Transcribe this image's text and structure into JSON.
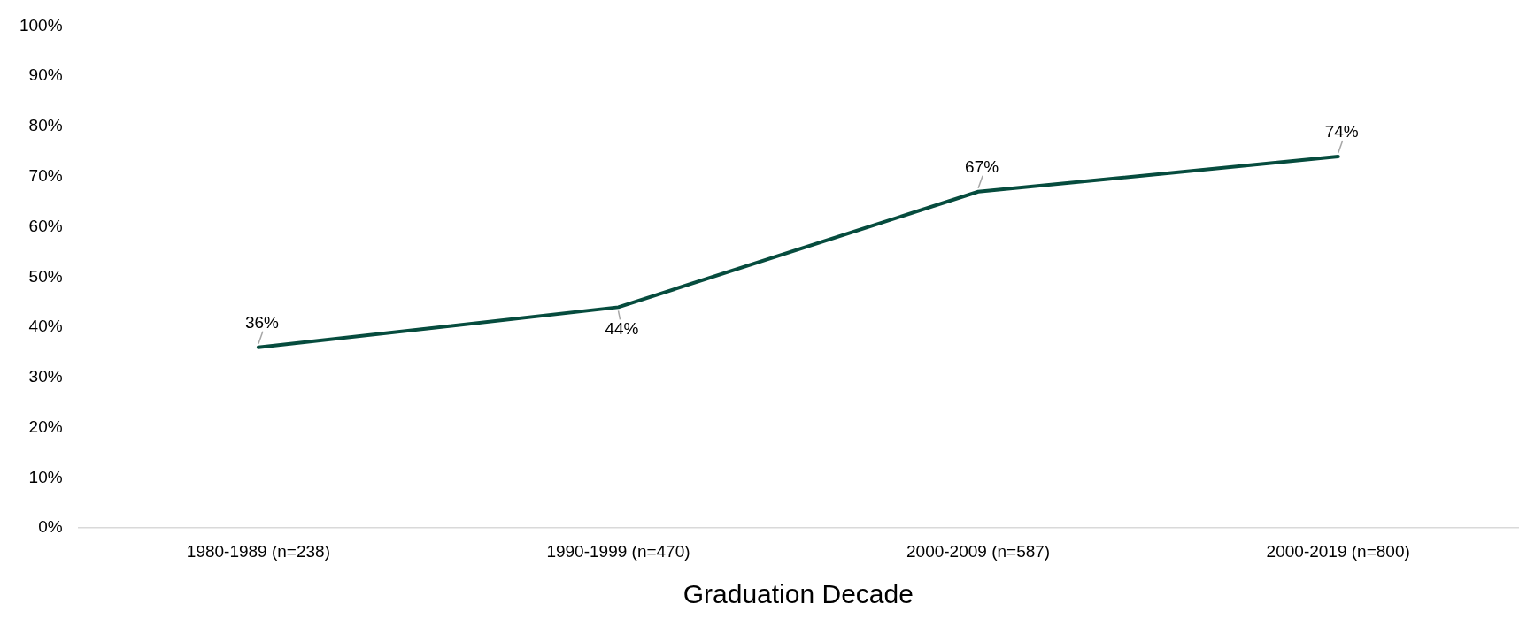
{
  "chart_data": {
    "type": "line",
    "xlabel": "Graduation Decade",
    "categories": [
      "1980-1989 (n=238)",
      "1990-1999 (n=470)",
      "2000-2009 (n=587)",
      "2000-2019 (n=800)"
    ],
    "series": [
      {
        "color": "#064c3e",
        "values": [
          36,
          44,
          67,
          74
        ]
      }
    ],
    "ylim": [
      0,
      100
    ],
    "yticks": [
      {
        "value": 0,
        "label": "0%"
      },
      {
        "value": 10,
        "label": "10%"
      },
      {
        "value": 20,
        "label": "20%"
      },
      {
        "value": 30,
        "label": "30%"
      },
      {
        "value": 40,
        "label": "40%"
      },
      {
        "value": 50,
        "label": "50%"
      },
      {
        "value": 60,
        "label": "60%"
      },
      {
        "value": 70,
        "label": "70%"
      },
      {
        "value": 80,
        "label": "80%"
      },
      {
        "value": 90,
        "label": "90%"
      },
      {
        "value": 100,
        "label": "100%"
      }
    ],
    "value_labels": [
      "36%",
      "44%",
      "67%",
      "74%"
    ],
    "grid": false,
    "legend": false,
    "marker": "none",
    "line_style": "solid"
  }
}
